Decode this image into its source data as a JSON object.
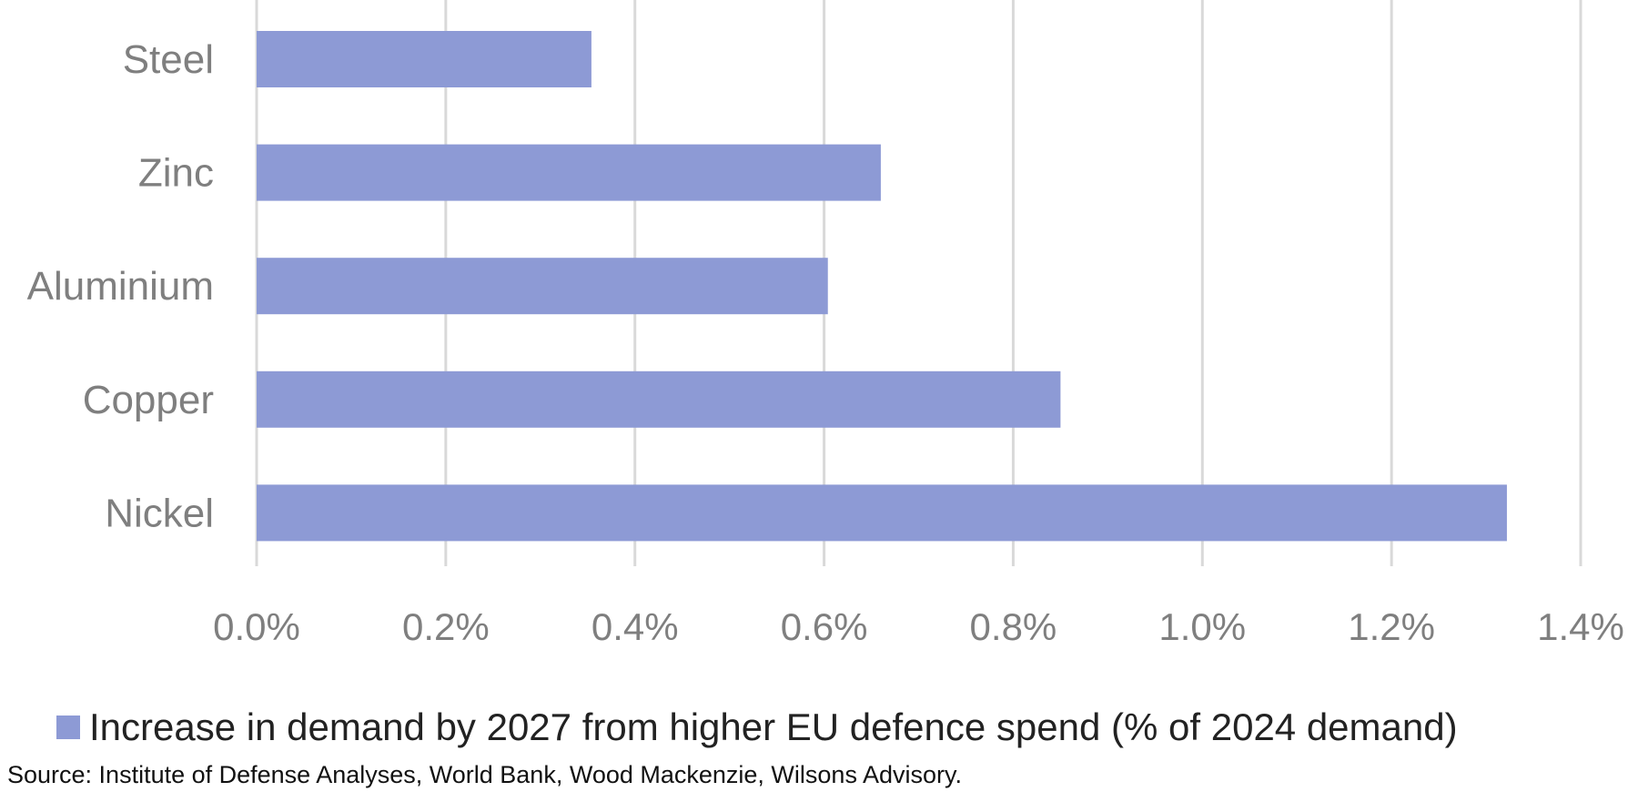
{
  "chart_data": {
    "type": "bar",
    "orientation": "horizontal",
    "categories": [
      "Steel",
      "Zinc",
      "Aluminium",
      "Copper",
      "Nickel"
    ],
    "series": [
      {
        "name": "Increase in demand by 2027 from higher EU defence spend (% of 2024 demand)",
        "values": [
          0.354,
          0.66,
          0.604,
          0.85,
          1.322
        ],
        "color": "#8d9ad5"
      }
    ],
    "xlim": [
      0,
      1.4
    ],
    "xticks": [
      "0.0%",
      "0.2%",
      "0.4%",
      "0.6%",
      "0.8%",
      "1.0%",
      "1.2%",
      "1.4%"
    ],
    "grid": true,
    "legend": "bottom",
    "source": "Source: Institute of Defense Analyses, World Bank, Wood Mackenzie, Wilsons Advisory."
  }
}
